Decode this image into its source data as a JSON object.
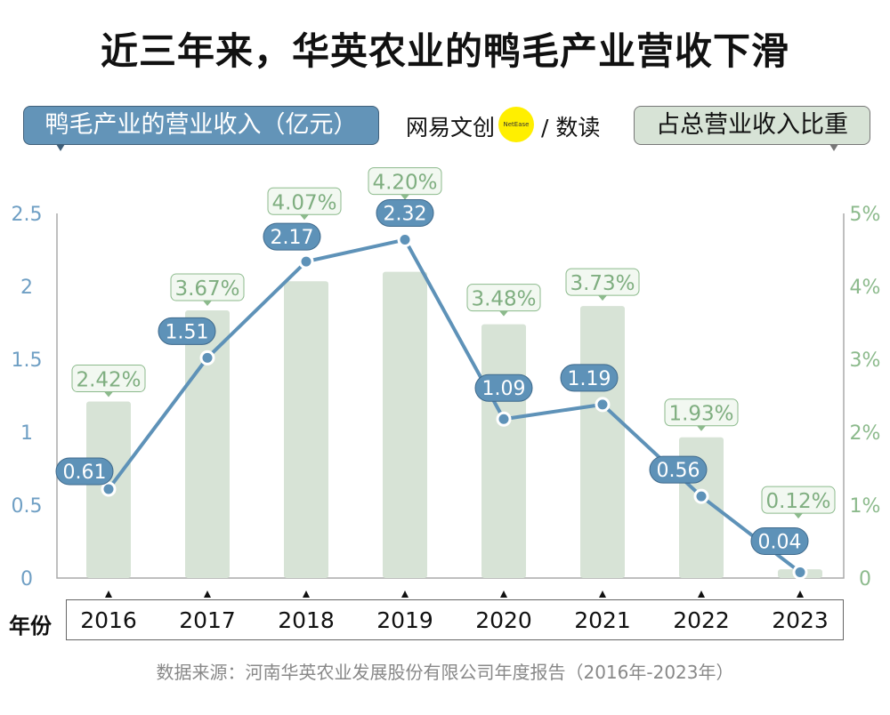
{
  "title": "近三年来，华英农业的鸭毛产业营收下滑",
  "legend": {
    "left": "鸭毛产业的营业收入（亿元）",
    "right": "占总营业收入比重"
  },
  "brand": {
    "name": "网易文创",
    "dot": "NetEase",
    "sub": "/ 数读"
  },
  "x_axis_label": "年份",
  "source": "数据来源：河南华英农业发展股份有限公司年度报告（2016年-2023年）",
  "colors": {
    "line": "#5e92b8",
    "bar": "#d7e3d6",
    "pct_text": "#7fae80",
    "pct_border": "#8cba8c",
    "left_axis": "#6f9fc4",
    "right_axis": "#8cba8c"
  },
  "chart_data": {
    "type": "bar+line",
    "categories": [
      "2016",
      "2017",
      "2018",
      "2019",
      "2020",
      "2021",
      "2022",
      "2023"
    ],
    "series": [
      {
        "name": "鸭毛产业的营业收入（亿元）",
        "type": "line",
        "axis": "left",
        "values": [
          0.61,
          1.51,
          2.17,
          2.32,
          1.09,
          1.19,
          0.56,
          0.04
        ],
        "labels": [
          "0.61",
          "1.51",
          "2.17",
          "2.32",
          "1.09",
          "1.19",
          "0.56",
          "0.04"
        ]
      },
      {
        "name": "占总营业收入比重",
        "type": "bar",
        "axis": "right",
        "values": [
          2.42,
          3.67,
          4.07,
          4.2,
          3.48,
          3.73,
          1.93,
          0.12
        ],
        "labels": [
          "2.42%",
          "3.67%",
          "4.07%",
          "4.20%",
          "3.48%",
          "3.73%",
          "1.93%",
          "0.12%"
        ]
      }
    ],
    "left_axis": {
      "ylim": [
        0,
        2.5
      ],
      "ticks": [
        "0",
        "0.5",
        "1",
        "1.5",
        "2",
        "2.5"
      ]
    },
    "right_axis": {
      "ylim": [
        0,
        5
      ],
      "ticks": [
        "0",
        "1%",
        "2%",
        "3%",
        "4%",
        "5%"
      ]
    },
    "grid": false
  }
}
